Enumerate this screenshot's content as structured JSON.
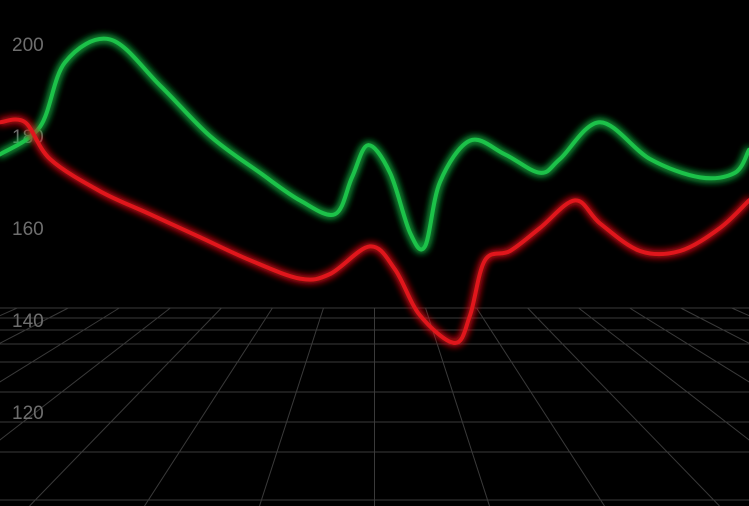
{
  "chart_data": {
    "type": "line",
    "title": "",
    "xlabel": "",
    "ylabel": "",
    "ylim": [
      100,
      210
    ],
    "yticks": [
      "200",
      "180",
      "160",
      "140",
      "120"
    ],
    "grid": "perspective floor",
    "legend": "none",
    "background_color": "#000000",
    "series": [
      {
        "color": "#1fc24a",
        "points": [
          [
            0,
            176
          ],
          [
            40,
            182
          ],
          [
            65,
            196
          ],
          [
            110,
            201
          ],
          [
            160,
            191
          ],
          [
            210,
            180
          ],
          [
            260,
            172
          ],
          [
            300,
            166
          ],
          [
            335,
            163
          ],
          [
            352,
            171
          ],
          [
            368,
            178
          ],
          [
            390,
            172
          ],
          [
            410,
            159
          ],
          [
            425,
            156
          ],
          [
            440,
            170
          ],
          [
            470,
            179
          ],
          [
            505,
            176
          ],
          [
            540,
            172
          ],
          [
            560,
            175
          ],
          [
            600,
            183
          ],
          [
            650,
            175
          ],
          [
            700,
            171
          ],
          [
            735,
            172
          ],
          [
            749,
            177
          ]
        ]
      },
      {
        "color": "#e0141c",
        "points": [
          [
            0,
            183
          ],
          [
            25,
            183
          ],
          [
            50,
            175
          ],
          [
            100,
            168
          ],
          [
            150,
            163
          ],
          [
            200,
            158
          ],
          [
            250,
            153
          ],
          [
            300,
            149
          ],
          [
            330,
            150
          ],
          [
            370,
            156
          ],
          [
            395,
            151
          ],
          [
            420,
            141
          ],
          [
            455,
            135
          ],
          [
            470,
            141
          ],
          [
            485,
            153
          ],
          [
            510,
            155
          ],
          [
            540,
            160
          ],
          [
            575,
            166
          ],
          [
            600,
            161
          ],
          [
            640,
            155
          ],
          [
            680,
            155
          ],
          [
            720,
            160
          ],
          [
            749,
            166
          ]
        ]
      }
    ]
  }
}
